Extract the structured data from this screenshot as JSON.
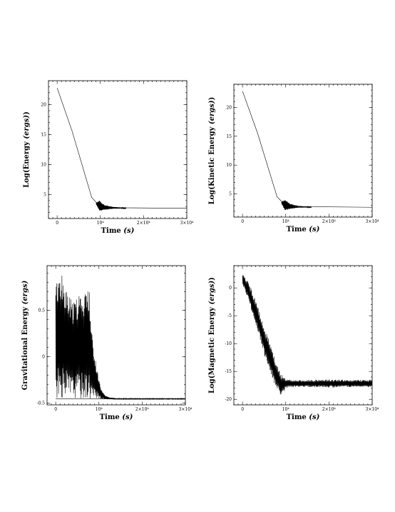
{
  "chart_data": [
    {
      "type": "line",
      "id": "energy",
      "xlabel_main": "Time",
      "xlabel_unit": "(s)",
      "ylabel_main": "Log(Energy",
      "ylabel_unit": "(ergs)",
      "ylabel_end": ")",
      "xlim": [
        -2000,
        30000
      ],
      "ylim": [
        1,
        24
      ],
      "x_ticks": [
        {
          "value": 0,
          "label": "0"
        },
        {
          "value": 10000,
          "label": "10⁴"
        },
        {
          "value": 20000,
          "label": "2×10⁴"
        },
        {
          "value": 30000,
          "label": "3×10⁴"
        }
      ],
      "y_ticks": [
        {
          "value": 5,
          "label": "5"
        },
        {
          "value": 10,
          "label": "10"
        },
        {
          "value": 15,
          "label": "15"
        },
        {
          "value": 20,
          "label": "20"
        }
      ],
      "series": [
        {
          "x": [
            0,
            3500,
            8000,
            9200,
            9800,
            12000,
            15000,
            30000
          ],
          "y": [
            22.8,
            15.5,
            4.5,
            3.6,
            3.2,
            2.9,
            2.8,
            2.7
          ]
        }
      ],
      "oscillation": {
        "x": [
          9000,
          9800,
          11000,
          13000,
          16000
        ],
        "half_width": [
          0.1,
          0.9,
          0.4,
          0.15,
          0.05
        ],
        "center": [
          3.5,
          3.1,
          2.85,
          2.78,
          2.72
        ]
      }
    },
    {
      "type": "line",
      "id": "kinetic",
      "xlabel_main": "Time",
      "xlabel_unit": "(s)",
      "ylabel_main": "Log(Kinetic Energy",
      "ylabel_unit": "(ergs)",
      "ylabel_end": ")",
      "xlim": [
        -2000,
        30000
      ],
      "ylim": [
        1,
        24
      ],
      "x_ticks": [
        {
          "value": 0,
          "label": "0"
        },
        {
          "value": 10000,
          "label": "10⁴"
        },
        {
          "value": 20000,
          "label": "2×10⁴"
        },
        {
          "value": 30000,
          "label": "3×10⁴"
        }
      ],
      "y_ticks": [
        {
          "value": 5,
          "label": "5"
        },
        {
          "value": 10,
          "label": "10"
        },
        {
          "value": 15,
          "label": "15"
        },
        {
          "value": 20,
          "label": "20"
        }
      ],
      "series": [
        {
          "x": [
            0,
            3500,
            8000,
            9200,
            9800,
            12000,
            15000,
            30000
          ],
          "y": [
            22.8,
            15.5,
            4.5,
            3.6,
            3.2,
            2.9,
            2.8,
            2.7
          ]
        }
      ],
      "oscillation": {
        "x": [
          9000,
          9800,
          11000,
          13000,
          16000
        ],
        "half_width": [
          0.1,
          1.0,
          0.45,
          0.15,
          0.05
        ],
        "center": [
          3.5,
          3.1,
          2.85,
          2.78,
          2.72
        ]
      }
    },
    {
      "type": "area",
      "id": "gravitational",
      "xlabel_main": "Time",
      "xlabel_unit": "(s)",
      "ylabel_main": "Gravitational Energy",
      "ylabel_unit": "(ergs)",
      "ylabel_end": "",
      "xlim": [
        -2000,
        30000
      ],
      "ylim": [
        -0.52,
        0.98
      ],
      "x_ticks": [
        {
          "value": 0,
          "label": "0"
        },
        {
          "value": 10000,
          "label": "10⁴"
        },
        {
          "value": 20000,
          "label": "2×10⁴"
        },
        {
          "value": 30000,
          "label": "3×10⁴"
        }
      ],
      "y_ticks": [
        {
          "value": -0.5,
          "label": "-0.5"
        },
        {
          "value": 0,
          "label": "0"
        },
        {
          "value": 0.5,
          "label": "0.5"
        }
      ],
      "envelope_upper": {
        "x": [
          0,
          500,
          1200,
          2000,
          3000,
          4000,
          5000,
          6000,
          7000,
          7800,
          8300,
          8800,
          9300,
          9800,
          10500,
          11500,
          12500,
          14000,
          17000,
          30000
        ],
        "y": [
          0.8,
          0.88,
          0.9,
          0.85,
          0.68,
          0.58,
          0.64,
          0.72,
          0.7,
          0.72,
          0.3,
          0.1,
          -0.05,
          -0.2,
          -0.35,
          -0.42,
          -0.44,
          -0.45,
          -0.45,
          -0.45
        ]
      },
      "envelope_lower": {
        "x": [
          0,
          2000,
          4000,
          6000,
          8000,
          9000,
          10000,
          11000,
          12000,
          14000,
          17000,
          30000
        ],
        "y": [
          -0.45,
          -0.45,
          -0.45,
          -0.45,
          -0.45,
          -0.46,
          -0.46,
          -0.46,
          -0.46,
          -0.46,
          -0.46,
          -0.46
        ]
      },
      "baseline": -0.455
    },
    {
      "type": "line",
      "id": "magnetic",
      "xlabel_main": "Time",
      "xlabel_unit": "(s)",
      "ylabel_main": "Log(Magnetic Energy",
      "ylabel_unit": "(ergs)",
      "ylabel_end": ")",
      "xlim": [
        -2000,
        30000
      ],
      "ylim": [
        -21,
        4
      ],
      "x_ticks": [
        {
          "value": 0,
          "label": "0"
        },
        {
          "value": 10000,
          "label": "10⁴"
        },
        {
          "value": 20000,
          "label": "2×10⁴"
        },
        {
          "value": 30000,
          "label": "3×10⁴"
        }
      ],
      "y_ticks": [
        {
          "value": -20,
          "label": "-20"
        },
        {
          "value": -15,
          "label": "-15"
        },
        {
          "value": -10,
          "label": "-10"
        },
        {
          "value": -5,
          "label": "-5"
        },
        {
          "value": 0,
          "label": "0"
        }
      ],
      "envelope_upper": {
        "x": [
          0,
          1000,
          2000,
          3000,
          4000,
          5000,
          6000,
          7000,
          8000,
          9000,
          10000,
          11000,
          15000,
          20000,
          25000,
          30000
        ],
        "y": [
          2.8,
          1.5,
          0.0,
          -2.0,
          -4.5,
          -7.0,
          -9.0,
          -11.5,
          -13.5,
          -15.5,
          -16.2,
          -16.5,
          -16.5,
          -16.4,
          -16.5,
          -16.5
        ]
      },
      "envelope_lower": {
        "x": [
          0,
          1000,
          2000,
          3000,
          4000,
          5000,
          6000,
          7000,
          8000,
          9000,
          10000,
          11000,
          15000,
          20000,
          25000,
          30000
        ],
        "y": [
          0.5,
          -1.5,
          -4.0,
          -6.5,
          -9.0,
          -12.0,
          -14.0,
          -16.5,
          -18.5,
          -19.5,
          -18.0,
          -17.8,
          -17.8,
          -17.9,
          -17.8,
          -17.8
        ]
      }
    }
  ]
}
